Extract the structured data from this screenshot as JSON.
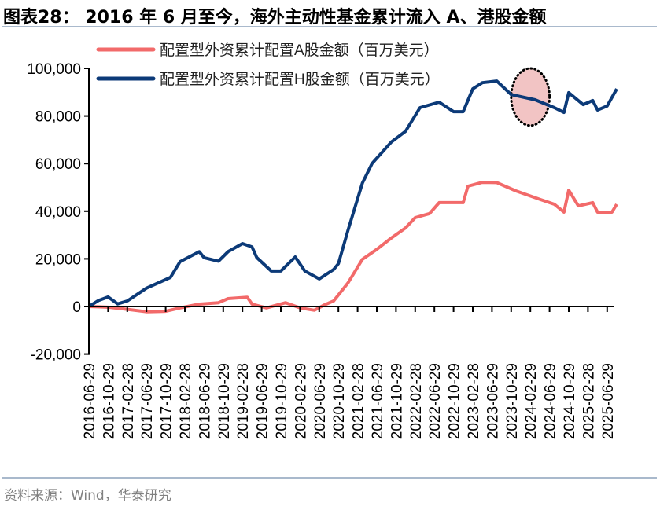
{
  "title": "图表28：  2016 年 6 月至今，海外主动性基金累计流入 A、港股金额",
  "source": "资料来源：Wind，华泰研究",
  "chart_data": {
    "type": "line",
    "title": "",
    "xlabel": "",
    "ylabel": "",
    "ylim": [
      -20000,
      100000
    ],
    "yticks": [
      -20000,
      0,
      20000,
      40000,
      60000,
      80000,
      100000
    ],
    "ytick_labels": [
      "-20,000",
      "0",
      "20,000",
      "40,000",
      "60,000",
      "80,000",
      "100,000"
    ],
    "xtick_labels": [
      "2016-06-29",
      "2016-10-29",
      "2017-02-28",
      "2017-06-29",
      "2017-10-29",
      "2018-02-28",
      "2018-06-29",
      "2018-10-29",
      "2019-02-28",
      "2019-06-29",
      "2019-10-29",
      "2020-02-29",
      "2020-06-29",
      "2020-10-29",
      "2021-02-28",
      "2021-06-29",
      "2021-10-29",
      "2022-02-28",
      "2022-06-29",
      "2022-10-29",
      "2023-02-28",
      "2023-06-29",
      "2023-10-29",
      "2024-02-29",
      "2024-06-29",
      "2024-10-29",
      "2025-02-28",
      "2025-06-29"
    ],
    "grid": false,
    "legend_placement": "top-left",
    "series": [
      {
        "name": "配置型外资累计配置A股金额（百万美元）",
        "color": "#f26a6a",
        "points": [
          [
            "2016-06",
            0
          ],
          [
            "2016-10",
            -300
          ],
          [
            "2017-02",
            -1200
          ],
          [
            "2017-06",
            -2200
          ],
          [
            "2017-10",
            -2000
          ],
          [
            "2018-01",
            -600
          ],
          [
            "2018-05",
            1000
          ],
          [
            "2018-09",
            1600
          ],
          [
            "2018-11",
            3300
          ],
          [
            "2019-03",
            3900
          ],
          [
            "2019-04",
            1000
          ],
          [
            "2019-07",
            -600
          ],
          [
            "2019-11",
            1600
          ],
          [
            "2020-02",
            -600
          ],
          [
            "2020-05",
            -1600
          ],
          [
            "2020-07",
            600
          ],
          [
            "2020-09",
            2300
          ],
          [
            "2020-12",
            9900
          ],
          [
            "2021-03",
            19800
          ],
          [
            "2021-06",
            24000
          ],
          [
            "2021-09",
            28700
          ],
          [
            "2021-12",
            33000
          ],
          [
            "2022-02",
            37300
          ],
          [
            "2022-05",
            39000
          ],
          [
            "2022-07",
            43600
          ],
          [
            "2022-12",
            43600
          ],
          [
            "2023-01",
            50500
          ],
          [
            "2023-04",
            52100
          ],
          [
            "2023-07",
            52000
          ],
          [
            "2023-11",
            48500
          ],
          [
            "2024-04",
            45000
          ],
          [
            "2024-07",
            42900
          ],
          [
            "2024-09",
            39600
          ],
          [
            "2024-10",
            48800
          ],
          [
            "2024-12",
            42200
          ],
          [
            "2025-03",
            43600
          ],
          [
            "2025-04",
            39600
          ],
          [
            "2025-07",
            39600
          ],
          [
            "2025-08",
            42900
          ]
        ]
      },
      {
        "name": "配置型外资累计配置H股金额（百万美元）",
        "color": "#0c3a78",
        "points": [
          [
            "2016-06",
            0
          ],
          [
            "2016-08",
            2500
          ],
          [
            "2016-10",
            4000
          ],
          [
            "2016-12",
            1100
          ],
          [
            "2017-02",
            2300
          ],
          [
            "2017-06",
            7700
          ],
          [
            "2017-11",
            12200
          ],
          [
            "2018-01",
            18800
          ],
          [
            "2018-05",
            23000
          ],
          [
            "2018-06",
            20500
          ],
          [
            "2018-09",
            19000
          ],
          [
            "2018-11",
            23000
          ],
          [
            "2019-02",
            26400
          ],
          [
            "2019-04",
            25000
          ],
          [
            "2019-05",
            20500
          ],
          [
            "2019-08",
            14900
          ],
          [
            "2019-10",
            14900
          ],
          [
            "2020-01",
            20800
          ],
          [
            "2020-03",
            14900
          ],
          [
            "2020-06",
            11600
          ],
          [
            "2020-09",
            15500
          ],
          [
            "2020-10",
            18000
          ],
          [
            "2020-12",
            32000
          ],
          [
            "2021-03",
            51800
          ],
          [
            "2021-05",
            60000
          ],
          [
            "2021-09",
            69000
          ],
          [
            "2021-12",
            73600
          ],
          [
            "2022-03",
            83500
          ],
          [
            "2022-07",
            85800
          ],
          [
            "2022-10",
            81800
          ],
          [
            "2022-12",
            81800
          ],
          [
            "2023-02",
            91400
          ],
          [
            "2023-04",
            94000
          ],
          [
            "2023-07",
            94700
          ],
          [
            "2023-10",
            89000
          ],
          [
            "2024-03",
            86800
          ],
          [
            "2024-07",
            83500
          ],
          [
            "2024-09",
            81500
          ],
          [
            "2024-10",
            89800
          ],
          [
            "2025-01",
            84800
          ],
          [
            "2025-03",
            86500
          ],
          [
            "2025-04",
            82500
          ],
          [
            "2025-06",
            84200
          ],
          [
            "2025-08",
            91400
          ]
        ]
      }
    ],
    "annotations": [
      {
        "type": "ellipse",
        "style": "dotted",
        "fill": "#f2c4c4",
        "x_range": [
          "2023-10",
          "2024-06"
        ],
        "y_range": [
          76000,
          100000
        ]
      }
    ]
  }
}
